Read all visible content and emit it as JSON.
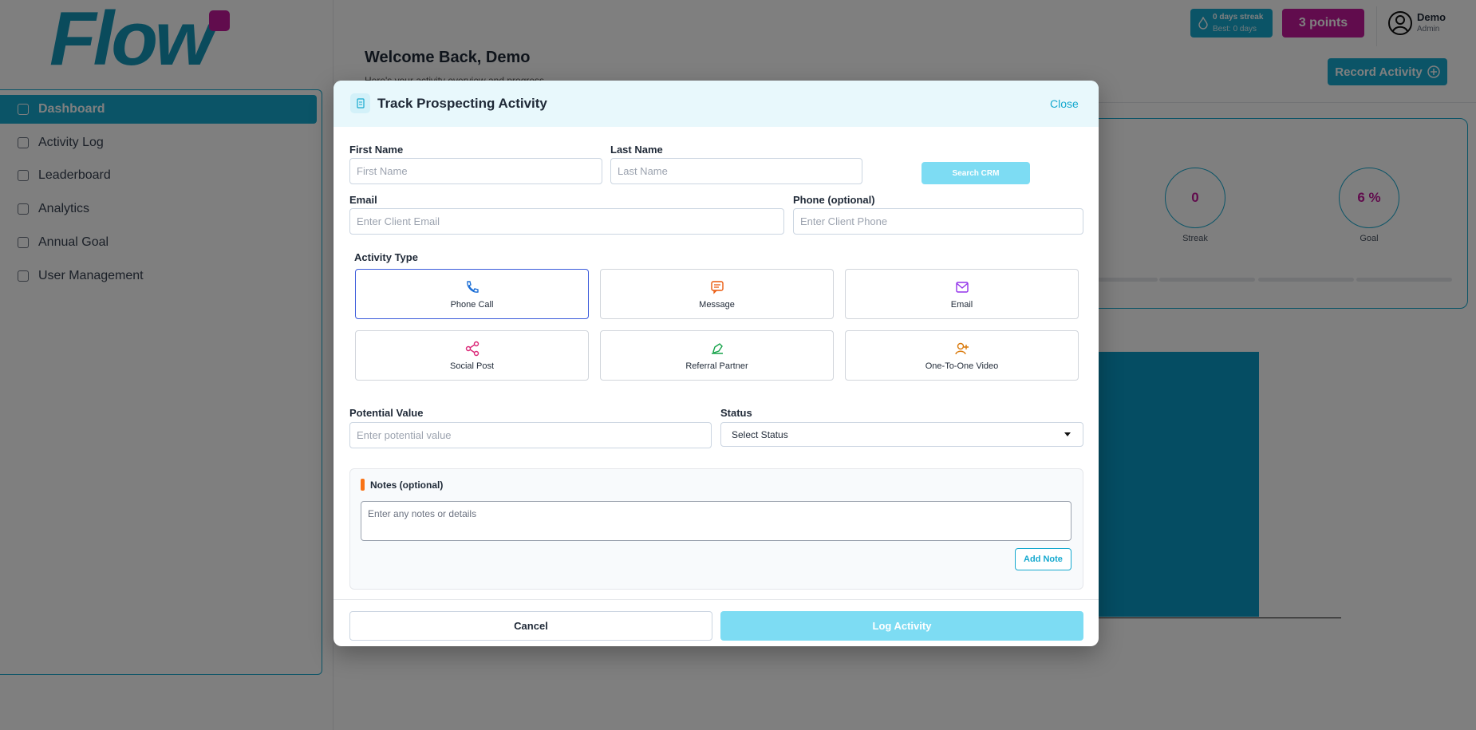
{
  "logo": "Flow",
  "sidebar": {
    "nav": [
      "Dashboard",
      "Activity Log",
      "Leaderboard",
      "Analytics",
      "Annual Goal",
      "User Management"
    ]
  },
  "header": {
    "streak": "0 days streak",
    "best": "Best: 0 days",
    "points": "3 points",
    "user_name": "Demo",
    "user_role": "Admin",
    "record_button": "Record Activity"
  },
  "page": {
    "title": "Welcome Back, Demo",
    "subtitle": "Here's your activity overview and progress",
    "stats": [
      {
        "value": "0",
        "label": "Streak"
      },
      {
        "value": "6 %",
        "label": "Goal"
      }
    ]
  },
  "modal": {
    "title": "Track Prospecting Activity",
    "close": "Close",
    "first_name": {
      "label": "First Name",
      "placeholder": "First Name"
    },
    "last_name": {
      "label": "Last Name",
      "placeholder": "Last Name"
    },
    "search_crm": "Search CRM",
    "email": {
      "label": "Email",
      "placeholder": "Enter Client Email"
    },
    "phone": {
      "label": "Phone (optional)",
      "placeholder": "Enter Client Phone"
    },
    "activity_type_label": "Activity Type",
    "activity_types": [
      "Phone Call",
      "Message",
      "Email",
      "Social Post",
      "Referral Partner",
      "One-To-One Video"
    ],
    "potential_value": {
      "label": "Potential Value",
      "placeholder": "Enter potential value"
    },
    "status": {
      "label": "Status",
      "placeholder": "Select Status"
    },
    "notes": {
      "label": "Notes (optional)",
      "placeholder": "Enter any notes or details",
      "button": "Add Note"
    },
    "cancel": "Cancel",
    "submit": "Log Activity"
  }
}
